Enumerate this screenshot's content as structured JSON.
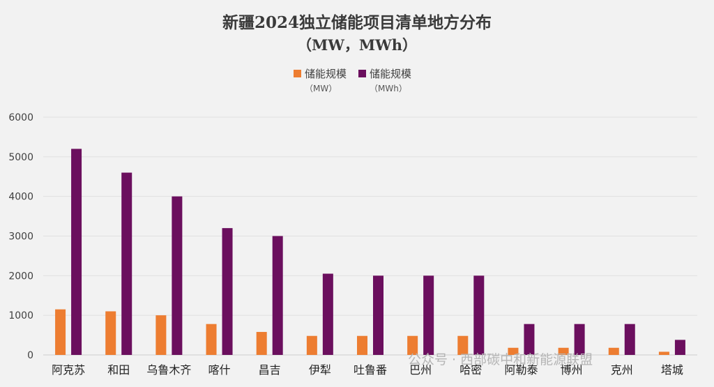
{
  "chart_data": {
    "type": "bar",
    "title": "新疆2024独立储能项目清单地方分布",
    "subtitle": "（MW，MWh）",
    "categories": [
      "阿克苏",
      "和田",
      "乌鲁木齐",
      "喀什",
      "昌吉",
      "伊犁",
      "吐鲁番",
      "巴州",
      "哈密",
      "阿勒泰",
      "博州",
      "克州",
      "塔城"
    ],
    "series": [
      {
        "name": "储能规模",
        "unit": "（MW）",
        "color": "#ed7d31",
        "values": [
          1150,
          1100,
          1000,
          780,
          580,
          480,
          480,
          480,
          480,
          180,
          180,
          180,
          80
        ]
      },
      {
        "name": "储能规模",
        "unit": "（MWh）",
        "color": "#6b0f5e",
        "values": [
          5200,
          4600,
          4000,
          3200,
          3000,
          2050,
          2000,
          2000,
          2000,
          780,
          780,
          780,
          380
        ]
      }
    ],
    "yticks": [
      0,
      1000,
      2000,
      3000,
      4000,
      5000,
      6000
    ],
    "ylim": [
      0,
      6000
    ],
    "grid": true,
    "legend_position": "top-center"
  },
  "watermark": "公众号 · 西部碳中和新能源联盟"
}
